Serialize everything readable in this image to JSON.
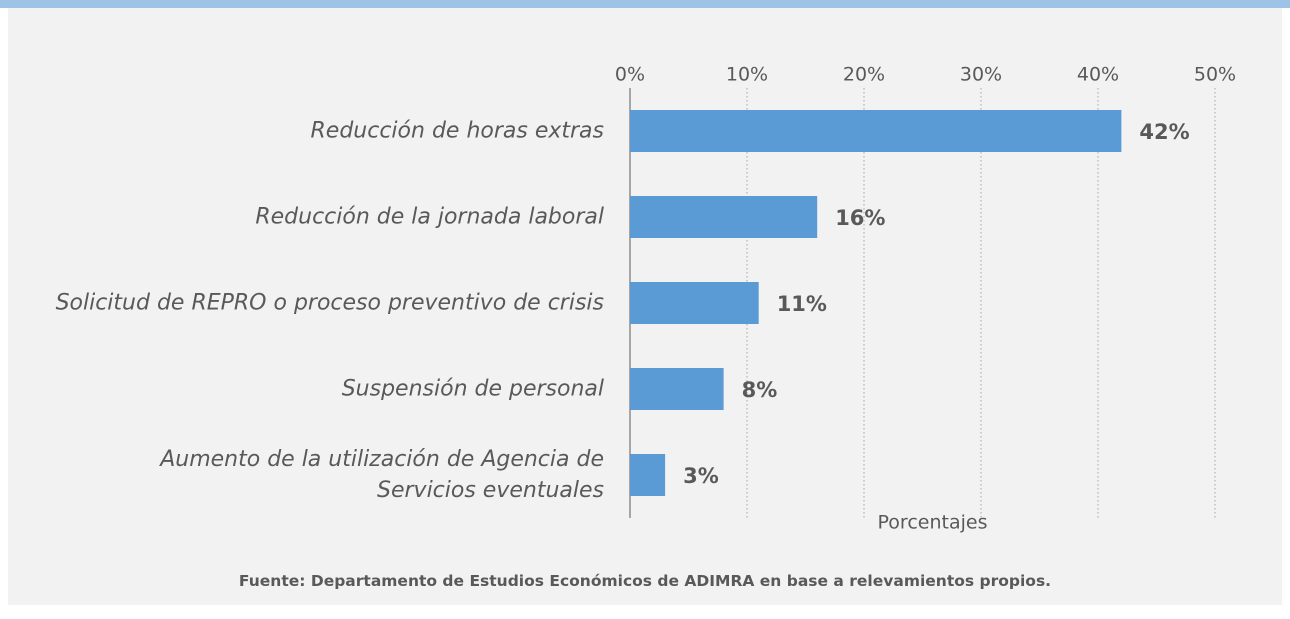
{
  "chart_data": {
    "type": "bar",
    "orientation": "horizontal",
    "categories": [
      "Reducción de horas extras",
      "Reducción de la jornada laboral",
      "Solicitud de REPRO o proceso preventivo de crisis",
      "Suspensión de personal",
      "Aumento de la utilización de Agencia de Servicios eventuales"
    ],
    "values": [
      42,
      16,
      11,
      8,
      3
    ],
    "value_labels": [
      "42%",
      "16%",
      "11%",
      "8%",
      "3%"
    ],
    "color": "#5b9bd5",
    "xlim": [
      0,
      50
    ],
    "xticks": [
      {
        "value": 0,
        "label": "0%"
      },
      {
        "value": 10,
        "label": "10%"
      },
      {
        "value": 20,
        "label": "20%"
      },
      {
        "value": 30,
        "label": "30%"
      },
      {
        "value": 40,
        "label": "40%"
      },
      {
        "value": 50,
        "label": "50%"
      }
    ],
    "xlabel": "Porcentajes",
    "grid": true,
    "source": "Fuente: Departamento de Estudios Económicos de ADIMRA en base a relevamientos propios."
  }
}
